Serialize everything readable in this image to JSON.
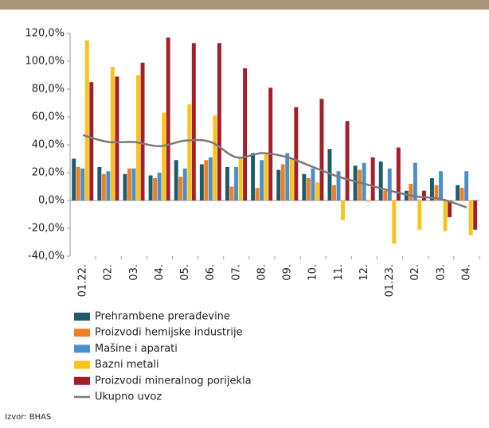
{
  "chart_data": {
    "type": "bar",
    "categories": [
      "01.22.",
      "02.",
      "03.",
      "04.",
      "05.",
      "06.",
      "07.",
      "08.",
      "09.",
      "10.",
      "11.",
      "12.",
      "01.23.",
      "02.",
      "03.",
      "04."
    ],
    "series": [
      {
        "name": "Prehrambene prerađevine",
        "color": "#1f5b6b",
        "values": [
          30,
          24,
          19,
          18,
          29,
          26,
          24,
          34,
          22,
          19,
          37,
          25,
          28,
          7,
          16,
          11
        ]
      },
      {
        "name": "Proizvodi hemijske industrije",
        "color": "#f07f23",
        "values": [
          24,
          19,
          23,
          16,
          17,
          29,
          10,
          9,
          26,
          16,
          11,
          22,
          7,
          12,
          11,
          9
        ]
      },
      {
        "name": "Mašine i aparati",
        "color": "#4a8fcc",
        "values": [
          23,
          21,
          23,
          20,
          23,
          31,
          24,
          29,
          34,
          23,
          21,
          27,
          23,
          27,
          21,
          21
        ]
      },
      {
        "name": "Bazni metali",
        "color": "#fbc319",
        "values": [
          115,
          96,
          90,
          63,
          69,
          61,
          30,
          33,
          30,
          13,
          -14,
          -1,
          -31,
          -21,
          -22,
          -25
        ]
      },
      {
        "name": "Proizvodi mineralnog porijekla",
        "color": "#a51e2a",
        "values": [
          85,
          89,
          99,
          117,
          113,
          113,
          95,
          81,
          67,
          73,
          57,
          31,
          38,
          7,
          -12,
          -21
        ]
      },
      {
        "name": "Ukupno uvoz",
        "color": "#7a7a7a",
        "type": "line",
        "values": [
          47,
          42,
          42,
          39,
          43,
          42,
          31,
          34,
          31,
          24,
          17,
          12,
          7,
          3,
          1,
          -5
        ]
      }
    ],
    "ylim": [
      -40,
      120
    ],
    "yticks": [
      {
        "value": -40,
        "label": "-40,0%"
      },
      {
        "value": -20,
        "label": "-20,0%"
      },
      {
        "value": 0,
        "label": "0,0%"
      },
      {
        "value": 20,
        "label": "20,0%"
      },
      {
        "value": 40,
        "label": "40,0%"
      },
      {
        "value": 60,
        "label": "60,0%"
      },
      {
        "value": 80,
        "label": "80,0%"
      },
      {
        "value": 100,
        "label": "100,0%"
      },
      {
        "value": 120,
        "label": "120,0%"
      }
    ],
    "source": "Izvor: BHAS"
  }
}
